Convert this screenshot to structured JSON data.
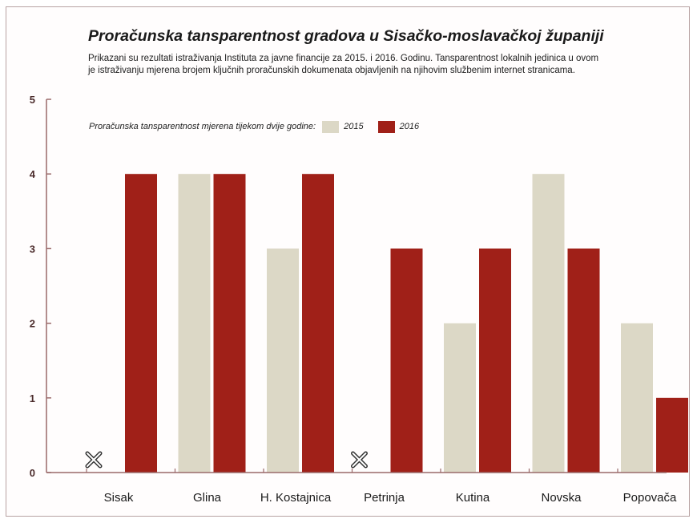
{
  "chart_data": {
    "type": "bar",
    "title": "Proračunska tansparentnost gradova u Sisačko-moslavačkoj županiji",
    "subtitle_lines": [
      "Prikazani su rezultati istraživanja Instituta za javne financije za 2015. i 2016. Godinu. Tansparentnost lokalnih jedinica u ovom",
      "je istraživanju mjerena brojem ključnih proračunskih dokumenata objavljenih na njihovim službenim internet stranicama."
    ],
    "legend_title": "Proračunska tansparentnost mjerena tijekom dvije godine:",
    "categories": [
      "Sisak",
      "Glina",
      "H. Kostajnica",
      "Petrinja",
      "Kutina",
      "Novska",
      "Popovača"
    ],
    "series": [
      {
        "name": "2015",
        "values": [
          null,
          4,
          3,
          null,
          2,
          4,
          2
        ],
        "color": "#dcd8c6"
      },
      {
        "name": "2016",
        "values": [
          4,
          4,
          4,
          3,
          3,
          3,
          1
        ],
        "color": "#a02018"
      }
    ],
    "missing_marker": "x-icon",
    "yticks": [
      "0",
      "1",
      "2",
      "3",
      "4",
      "5"
    ],
    "ylim": [
      0,
      5
    ],
    "xlabel": "",
    "ylabel": "",
    "grid": false,
    "legend_position": "top-left",
    "axis_color": "#9a6a6a"
  }
}
